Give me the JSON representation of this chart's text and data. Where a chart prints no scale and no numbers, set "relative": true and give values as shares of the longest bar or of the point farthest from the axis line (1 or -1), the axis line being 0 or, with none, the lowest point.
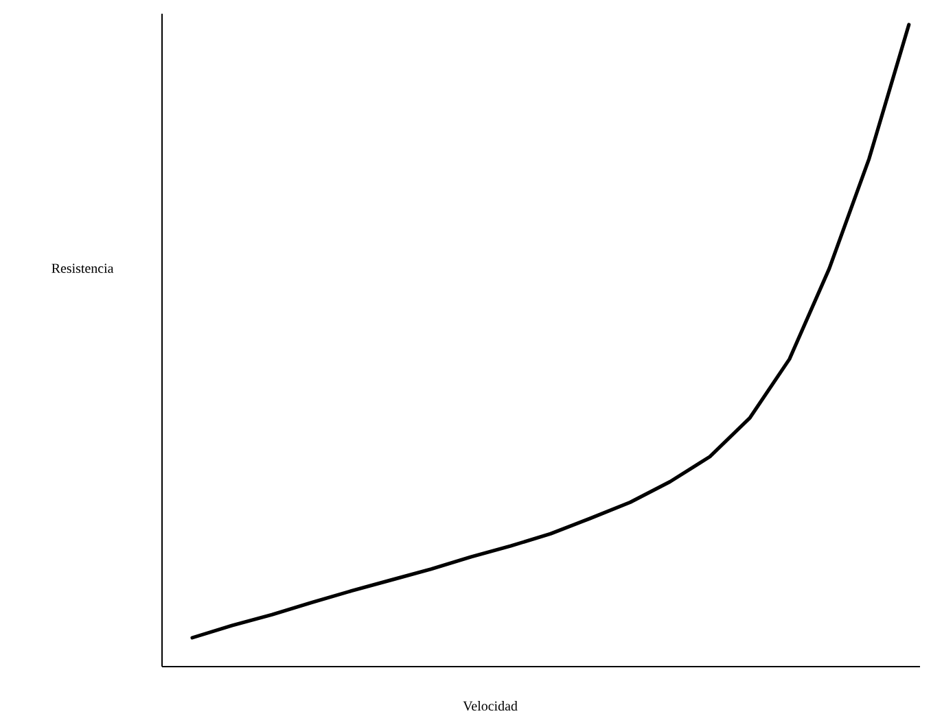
{
  "chart_data": {
    "type": "line",
    "relative": true,
    "xlabel": "Velocidad",
    "ylabel": "Resistencia",
    "categories": [
      null,
      null,
      null,
      null,
      null,
      null,
      null,
      null,
      null,
      null,
      null,
      null,
      null,
      null,
      null,
      null,
      null,
      null,
      null
    ],
    "series": [
      {
        "color": "#000000",
        "values": [
          0.045,
          0.064,
          0.081,
          0.1,
          0.118,
          0.135,
          0.152,
          0.171,
          0.188,
          0.207,
          0.231,
          0.256,
          0.288,
          0.327,
          0.387,
          0.479,
          0.62,
          0.791,
          1.0
        ]
      }
    ],
    "grid": false,
    "marker": "none",
    "line_style": "solid"
  }
}
